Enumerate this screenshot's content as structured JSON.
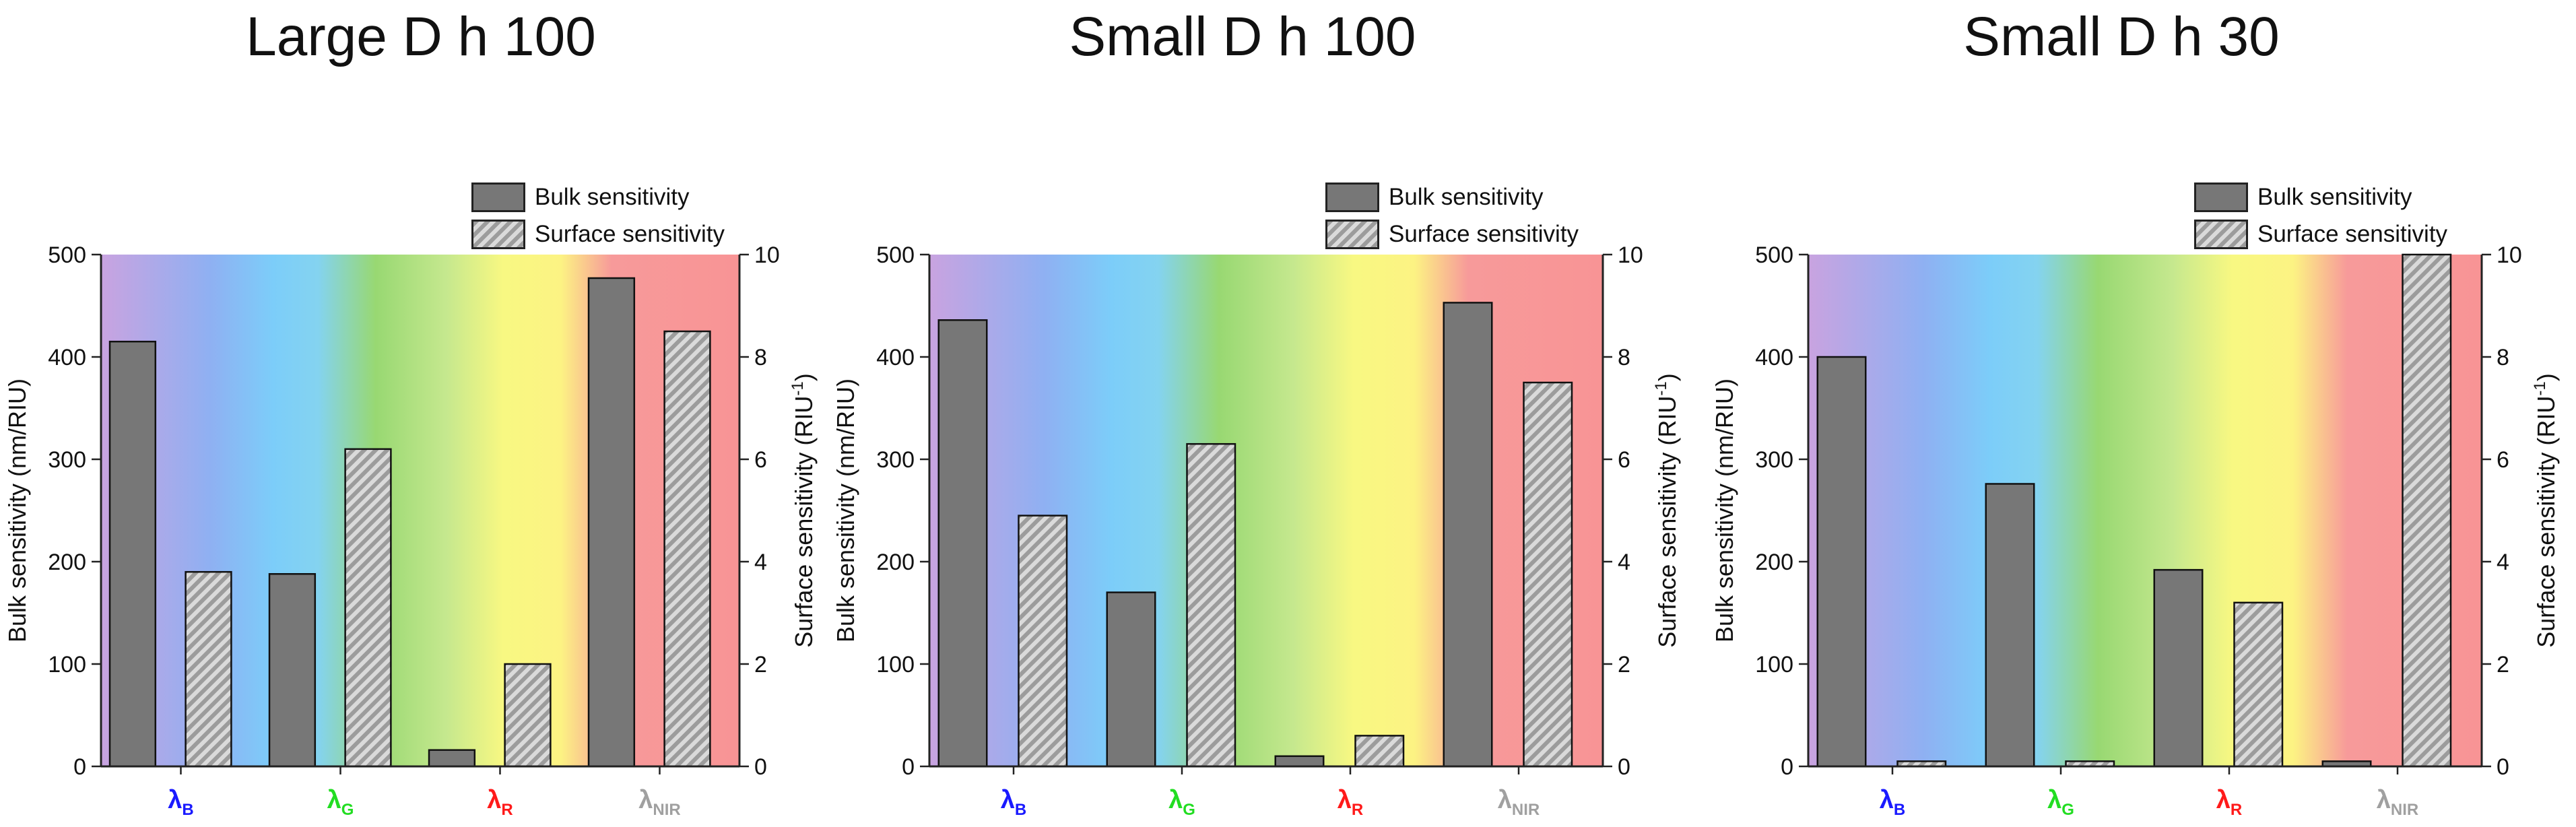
{
  "legend": {
    "bulk": "Bulk sensitivity",
    "surface": "Surface sensitivity"
  },
  "colors": {
    "bulk": "#777777",
    "hatch_dark": "#9c9c9c",
    "hatch_light": "#dadada",
    "blue": "#1a1aff",
    "green": "#22dd22",
    "red": "#ff1a1a",
    "nir": "#a0a0a0"
  },
  "chart_data": [
    {
      "type": "bar",
      "title": "Large D h 100",
      "categories": [
        "λB",
        "λG",
        "λR",
        "λNIR"
      ],
      "category_labels": [
        {
          "main": "λ",
          "sub": "B"
        },
        {
          "main": "λ",
          "sub": "G"
        },
        {
          "main": "λ",
          "sub": "R"
        },
        {
          "main": "λ",
          "sub": "NIR"
        }
      ],
      "ylabel": "Bulk sensitivity (nm/RIU)",
      "y2label": "Surface sensitivity (RIU",
      "y2label_sup": "-1",
      "y2label_end": ")",
      "ylim": [
        0,
        500
      ],
      "y2lim": [
        0,
        10
      ],
      "yticks": [
        "0",
        "100",
        "200",
        "300",
        "400",
        "500"
      ],
      "y2ticks": [
        "0",
        "2",
        "4",
        "6",
        "8",
        "10"
      ],
      "series": [
        {
          "name": "Bulk sensitivity",
          "axis": "left",
          "values": [
            415,
            188,
            16,
            477
          ]
        },
        {
          "name": "Surface sensitivity",
          "axis": "right",
          "values": [
            3.8,
            6.2,
            2.0,
            8.5
          ]
        }
      ]
    },
    {
      "type": "bar",
      "title": "Small D h 100",
      "categories": [
        "λB",
        "λG",
        "λR",
        "λNIR"
      ],
      "category_labels": [
        {
          "main": "λ",
          "sub": "B"
        },
        {
          "main": "λ",
          "sub": "G"
        },
        {
          "main": "λ",
          "sub": "R"
        },
        {
          "main": "λ",
          "sub": "NIR"
        }
      ],
      "ylabel": "Bulk sensitivity (nm/RIU)",
      "y2label": "Surface sensitivity (RIU",
      "y2label_sup": "-1",
      "y2label_end": ")",
      "ylim": [
        0,
        500
      ],
      "y2lim": [
        0,
        10
      ],
      "yticks": [
        "0",
        "100",
        "200",
        "300",
        "400",
        "500"
      ],
      "y2ticks": [
        "0",
        "2",
        "4",
        "6",
        "8",
        "10"
      ],
      "series": [
        {
          "name": "Bulk sensitivity",
          "axis": "left",
          "values": [
            436,
            170,
            10,
            453
          ]
        },
        {
          "name": "Surface sensitivity",
          "axis": "right",
          "values": [
            4.9,
            6.3,
            0.6,
            7.5
          ]
        }
      ]
    },
    {
      "type": "bar",
      "title": "Small D h 30",
      "categories": [
        "λB",
        "λG",
        "λR",
        "λNIR"
      ],
      "category_labels": [
        {
          "main": "λ",
          "sub": "B"
        },
        {
          "main": "λ",
          "sub": "G"
        },
        {
          "main": "λ",
          "sub": "R"
        },
        {
          "main": "λ",
          "sub": "NIR"
        }
      ],
      "ylabel": "Bulk sensitivity (nm/RIU)",
      "y2label": "Surface sensitivity (RIU",
      "y2label_sup": "-1",
      "y2label_end": ")",
      "ylim": [
        0,
        500
      ],
      "y2lim": [
        0,
        10
      ],
      "yticks": [
        "0",
        "100",
        "200",
        "300",
        "400",
        "500"
      ],
      "y2ticks": [
        "0",
        "2",
        "4",
        "6",
        "8",
        "10"
      ],
      "series": [
        {
          "name": "Bulk sensitivity",
          "axis": "left",
          "values": [
            400,
            276,
            192,
            5
          ]
        },
        {
          "name": "Surface sensitivity",
          "axis": "right",
          "values": [
            0.1,
            0.1,
            3.2,
            10.0
          ]
        }
      ]
    }
  ]
}
